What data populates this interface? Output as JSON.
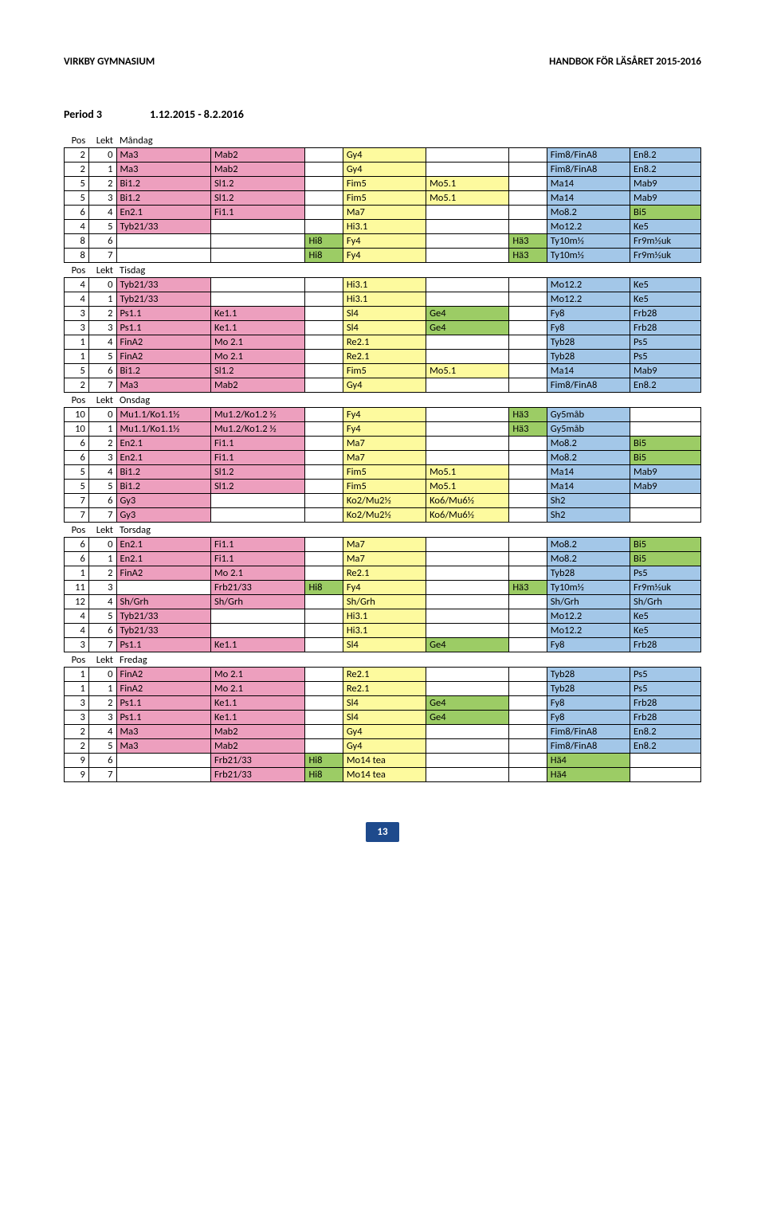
{
  "header": {
    "left": "VIRKBY GYMNASIUM",
    "right": "HANDBOK FÖR LÄSÅRET 2015-2016"
  },
  "title": {
    "period": "Period 3",
    "dates": "1.12.2015 - 8.2.2016"
  },
  "legend": {
    "pos": "Pos",
    "lekt": "Lekt"
  },
  "days": [
    "Måndag",
    "Tisdag",
    "Onsdag",
    "Torsdag",
    "Fredag"
  ],
  "colorMap": {
    "Ma3": "pink",
    "Mab2": "pink",
    "Bi1.2": "pink",
    "Sl1.2": "pink",
    "En2.1": "pink",
    "Fi1.1": "pink",
    "Tyb21/33": "pink",
    "Ps1.1": "pink",
    "Ke1.1": "pink",
    "FinA2": "pink",
    "Mo 2.1": "pink",
    "Mu1.1/Ko1.1½": "pink",
    "Mu1.2/Ko1.2 ½": "pink",
    "Gy3": "pink",
    "Frb21/33": "pink",
    "Sh/Grh": "pink",
    "Gy4": "yellow",
    "Fim5": "yellow",
    "Mo5.1": "yellow",
    "Ma7": "yellow",
    "Hi3.1": "yellow",
    "Fy4": "yellow",
    "Re2.1": "yellow",
    "Sl4": "yellow",
    "Ko2/Mu2½": "yellow",
    "Ko6/Mu6½": "yellow",
    "Mo14 tea": "yellow",
    "Fim8/FinA8": "blue",
    "En8.2": "blue",
    "Ma14": "blue",
    "Mab9": "blue",
    "Mo8.2": "blue",
    "Bi5": "blue",
    "Mo12.2": "blue",
    "Ke5": "blue",
    "Ty10m½": "blue",
    "Fr9m½uk": "blue",
    "Fy8": "blue",
    "Frb28": "blue",
    "Tyb28": "blue",
    "Ps5": "blue",
    "Gy5måb": "blue",
    "Sh2": "blue",
    "Hä4": "blue",
    "Hä3": "green",
    "Hi8": "green",
    "Ge4": "green"
  },
  "sections": [
    {
      "day": "Måndag",
      "rows": [
        {
          "pos": "2",
          "lekt": "0",
          "c": [
            "Ma3",
            "Mab2",
            "",
            "Gy4",
            "",
            "",
            "Fim8/FinA8",
            "En8.2"
          ]
        },
        {
          "pos": "2",
          "lekt": "1",
          "c": [
            "Ma3",
            "Mab2",
            "",
            "Gy4",
            "",
            "",
            "Fim8/FinA8",
            "En8.2"
          ]
        },
        {
          "pos": "5",
          "lekt": "2",
          "c": [
            "Bi1.2",
            "Sl1.2",
            "",
            "Fim5",
            "Mo5.1",
            "",
            "Ma14",
            "Mab9"
          ]
        },
        {
          "pos": "5",
          "lekt": "3",
          "c": [
            "Bi1.2",
            "Sl1.2",
            "",
            "Fim5",
            "Mo5.1",
            "",
            "Ma14",
            "Mab9"
          ]
        },
        {
          "pos": "6",
          "lekt": "4",
          "c": [
            "En2.1",
            "Fi1.1",
            "",
            "Ma7",
            "",
            "",
            "Mo8.2",
            "Bi5"
          ],
          "ov": {
            "7": "green"
          }
        },
        {
          "pos": "4",
          "lekt": "5",
          "c": [
            "Tyb21/33",
            "",
            "",
            "Hi3.1",
            "",
            "",
            "Mo12.2",
            "Ke5"
          ]
        },
        {
          "pos": "8",
          "lekt": "6",
          "c": [
            "",
            "",
            "Hi8",
            "Fy4",
            "",
            "Hä3",
            "Ty10m½",
            "Fr9m½uk"
          ]
        },
        {
          "pos": "8",
          "lekt": "7",
          "c": [
            "",
            "",
            "Hi8",
            "Fy4",
            "",
            "Hä3",
            "Ty10m½",
            "Fr9m½uk"
          ]
        }
      ]
    },
    {
      "day": "Tisdag",
      "rows": [
        {
          "pos": "4",
          "lekt": "0",
          "c": [
            "Tyb21/33",
            "",
            "",
            "Hi3.1",
            "",
            "",
            "Mo12.2",
            "Ke5"
          ]
        },
        {
          "pos": "4",
          "lekt": "1",
          "c": [
            "Tyb21/33",
            "",
            "",
            "Hi3.1",
            "",
            "",
            "Mo12.2",
            "Ke5"
          ]
        },
        {
          "pos": "3",
          "lekt": "2",
          "c": [
            "Ps1.1",
            "Ke1.1",
            "",
            "Sl4",
            "Ge4",
            "",
            "Fy8",
            "Frb28"
          ]
        },
        {
          "pos": "3",
          "lekt": "3",
          "c": [
            "Ps1.1",
            "Ke1.1",
            "",
            "Sl4",
            "Ge4",
            "",
            "Fy8",
            "Frb28"
          ]
        },
        {
          "pos": "1",
          "lekt": "4",
          "c": [
            "FinA2",
            "Mo 2.1",
            "",
            "Re2.1",
            "",
            "",
            "Tyb28",
            "Ps5"
          ]
        },
        {
          "pos": "1",
          "lekt": "5",
          "c": [
            "FinA2",
            "Mo 2.1",
            "",
            "Re2.1",
            "",
            "",
            "Tyb28",
            "Ps5"
          ]
        },
        {
          "pos": "5",
          "lekt": "6",
          "c": [
            "Bi1.2",
            "Sl1.2",
            "",
            "Fim5",
            "Mo5.1",
            "",
            "Ma14",
            "Mab9"
          ]
        },
        {
          "pos": "2",
          "lekt": "7",
          "c": [
            "Ma3",
            "Mab2",
            "",
            "Gy4",
            "",
            "",
            "Fim8/FinA8",
            "En8.2"
          ]
        }
      ]
    },
    {
      "day": "Onsdag",
      "rows": [
        {
          "pos": "10",
          "lekt": "0",
          "c": [
            "Mu1.1/Ko1.1½",
            "Mu1.2/Ko1.2 ½",
            "",
            "Fy4",
            "",
            "Hä3",
            "Gy5måb",
            ""
          ]
        },
        {
          "pos": "10",
          "lekt": "1",
          "c": [
            "Mu1.1/Ko1.1½",
            "Mu1.2/Ko1.2 ½",
            "",
            "Fy4",
            "",
            "Hä3",
            "Gy5måb",
            ""
          ]
        },
        {
          "pos": "6",
          "lekt": "2",
          "c": [
            "En2.1",
            "Fi1.1",
            "",
            "Ma7",
            "",
            "",
            "Mo8.2",
            "Bi5"
          ],
          "ov": {
            "7": "green"
          }
        },
        {
          "pos": "6",
          "lekt": "3",
          "c": [
            "En2.1",
            "Fi1.1",
            "",
            "Ma7",
            "",
            "",
            "Mo8.2",
            "Bi5"
          ],
          "ov": {
            "7": "green"
          }
        },
        {
          "pos": "5",
          "lekt": "4",
          "c": [
            "Bi1.2",
            "Sl1.2",
            "",
            "Fim5",
            "Mo5.1",
            "",
            "Ma14",
            "Mab9"
          ]
        },
        {
          "pos": "5",
          "lekt": "5",
          "c": [
            "Bi1.2",
            "Sl1.2",
            "",
            "Fim5",
            "Mo5.1",
            "",
            "Ma14",
            "Mab9"
          ]
        },
        {
          "pos": "7",
          "lekt": "6",
          "c": [
            "Gy3",
            "",
            "",
            "Ko2/Mu2½",
            "Ko6/Mu6½",
            "",
            "Sh2",
            ""
          ]
        },
        {
          "pos": "7",
          "lekt": "7",
          "c": [
            "Gy3",
            "",
            "",
            "Ko2/Mu2½",
            "Ko6/Mu6½",
            "",
            "Sh2",
            ""
          ]
        }
      ]
    },
    {
      "day": "Torsdag",
      "rows": [
        {
          "pos": "6",
          "lekt": "0",
          "c": [
            "En2.1",
            "Fi1.1",
            "",
            "Ma7",
            "",
            "",
            "Mo8.2",
            "Bi5"
          ],
          "ov": {
            "7": "green"
          }
        },
        {
          "pos": "6",
          "lekt": "1",
          "c": [
            "En2.1",
            "Fi1.1",
            "",
            "Ma7",
            "",
            "",
            "Mo8.2",
            "Bi5"
          ],
          "ov": {
            "7": "green"
          }
        },
        {
          "pos": "1",
          "lekt": "2",
          "c": [
            "FinA2",
            "Mo 2.1",
            "",
            "Re2.1",
            "",
            "",
            "Tyb28",
            "Ps5"
          ]
        },
        {
          "pos": "11",
          "lekt": "3",
          "c": [
            "",
            "Frb21/33",
            "Hi8",
            "Fy4",
            "",
            "Hä3",
            "Ty10m½",
            "Fr9m½uk"
          ]
        },
        {
          "pos": "12",
          "lekt": "4",
          "c": [
            "Sh/Grh",
            "Sh/Grh",
            "",
            "Sh/Grh",
            "",
            "",
            "Sh/Grh",
            "Sh/Grh"
          ],
          "ov": {
            "3": "yellow",
            "6": "blue",
            "7": "blue"
          }
        },
        {
          "pos": "4",
          "lekt": "5",
          "c": [
            "Tyb21/33",
            "",
            "",
            "Hi3.1",
            "",
            "",
            "Mo12.2",
            "Ke5"
          ]
        },
        {
          "pos": "4",
          "lekt": "6",
          "c": [
            "Tyb21/33",
            "",
            "",
            "Hi3.1",
            "",
            "",
            "Mo12.2",
            "Ke5"
          ]
        },
        {
          "pos": "3",
          "lekt": "7",
          "c": [
            "Ps1.1",
            "Ke1.1",
            "",
            "Sl4",
            "Ge4",
            "",
            "Fy8",
            "Frb28"
          ]
        }
      ]
    },
    {
      "day": "Fredag",
      "rows": [
        {
          "pos": "1",
          "lekt": "0",
          "c": [
            "FinA2",
            "Mo 2.1",
            "",
            "Re2.1",
            "",
            "",
            "Tyb28",
            "Ps5"
          ]
        },
        {
          "pos": "1",
          "lekt": "1",
          "c": [
            "FinA2",
            "Mo 2.1",
            "",
            "Re2.1",
            "",
            "",
            "Tyb28",
            "Ps5"
          ]
        },
        {
          "pos": "3",
          "lekt": "2",
          "c": [
            "Ps1.1",
            "Ke1.1",
            "",
            "Sl4",
            "Ge4",
            "",
            "Fy8",
            "Frb28"
          ]
        },
        {
          "pos": "3",
          "lekt": "3",
          "c": [
            "Ps1.1",
            "Ke1.1",
            "",
            "Sl4",
            "Ge4",
            "",
            "Fy8",
            "Frb28"
          ]
        },
        {
          "pos": "2",
          "lekt": "4",
          "c": [
            "Ma3",
            "Mab2",
            "",
            "Gy4",
            "",
            "",
            "Fim8/FinA8",
            "En8.2"
          ]
        },
        {
          "pos": "2",
          "lekt": "5",
          "c": [
            "Ma3",
            "Mab2",
            "",
            "Gy4",
            "",
            "",
            "Fim8/FinA8",
            "En8.2"
          ]
        },
        {
          "pos": "9",
          "lekt": "6",
          "c": [
            "",
            "Frb21/33",
            "Hi8",
            "Mo14 tea",
            "",
            "",
            "Hä4",
            ""
          ],
          "ov": {
            "6": "green"
          }
        },
        {
          "pos": "9",
          "lekt": "7",
          "c": [
            "",
            "Frb21/33",
            "Hi8",
            "Mo14 tea",
            "",
            "",
            "Hä4",
            ""
          ],
          "ov": {
            "6": "green"
          }
        }
      ]
    }
  ],
  "pageNumber": "13"
}
